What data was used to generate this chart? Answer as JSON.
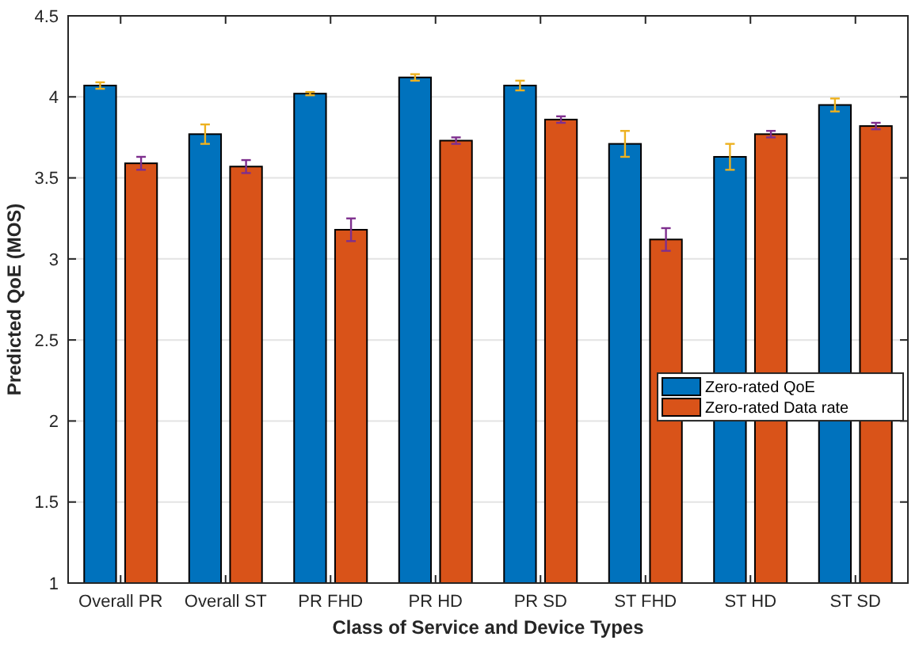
{
  "chart_data": {
    "type": "bar",
    "xlabel": "Class of Service and Device Types",
    "ylabel": "Predicted QoE (MOS)",
    "categories": [
      "Overall PR",
      "Overall ST",
      "PR FHD",
      "PR HD",
      "PR SD",
      "ST FHD",
      "ST HD",
      "ST SD"
    ],
    "series": [
      {
        "name": "Zero-rated QoE",
        "color": "#0072bd",
        "values": [
          4.07,
          3.77,
          4.02,
          4.12,
          4.07,
          3.71,
          3.63,
          3.95
        ],
        "errors": [
          0.02,
          0.06,
          0.01,
          0.02,
          0.03,
          0.08,
          0.08,
          0.04
        ]
      },
      {
        "name": "Zero-rated Data rate",
        "color": "#d95319",
        "values": [
          3.59,
          3.57,
          3.18,
          3.73,
          3.86,
          3.12,
          3.77,
          3.82
        ],
        "errors": [
          0.04,
          0.04,
          0.07,
          0.02,
          0.02,
          0.07,
          0.02,
          0.02
        ]
      }
    ],
    "ylim": [
      1,
      4.5
    ],
    "yticks": [
      1,
      1.5,
      2,
      2.5,
      3,
      3.5,
      4,
      4.5
    ],
    "grid": "y",
    "legend": "right"
  }
}
